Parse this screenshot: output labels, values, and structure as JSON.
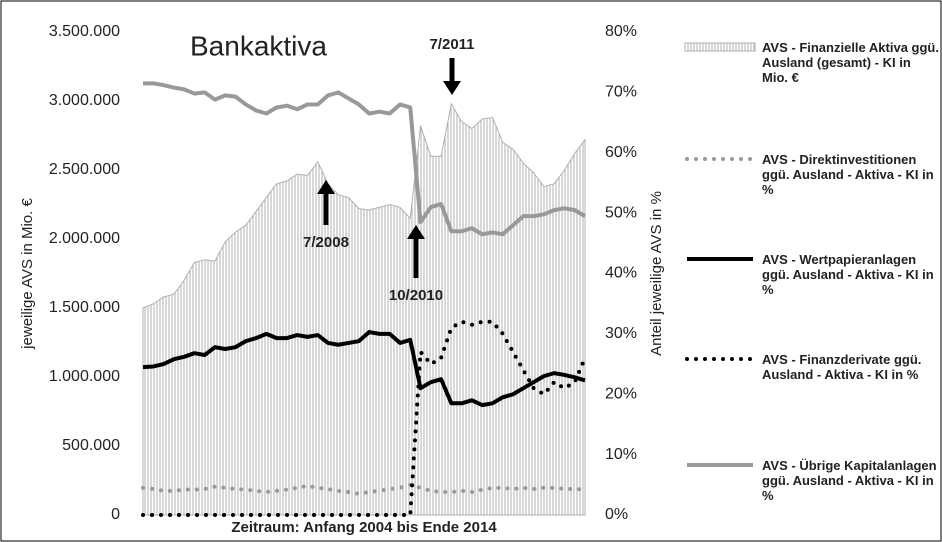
{
  "chart_data": {
    "type": "combo",
    "title": "Bankaktiva",
    "x_label": "Zeitraum: Anfang 2004 bis Ende 2014",
    "y_label": "jeweilige AVS in Mio. €",
    "y2_label": "Anteil jeweilige AVS in %",
    "ylim": [
      0,
      3500000
    ],
    "yticks": [
      0,
      {
        "value": 500000,
        "label": "500.000"
      },
      {
        "value": 1000000,
        "label": "1.000.000"
      },
      {
        "value": 1500000,
        "label": "1.500.000"
      },
      {
        "value": 2000000,
        "label": "2.000.000"
      },
      {
        "value": 2500000,
        "label": "2.500.000"
      },
      {
        "value": 3000000,
        "label": "3.000.000"
      },
      {
        "value": 3500000,
        "label": "3.500.000"
      }
    ],
    "y2lim": [
      0,
      80
    ],
    "y2ticks": [
      {
        "value": 0,
        "label": "0%"
      },
      {
        "value": 10,
        "label": "10%"
      },
      {
        "value": 20,
        "label": "20%"
      },
      {
        "value": 30,
        "label": "30%"
      },
      {
        "value": 40,
        "label": "40%"
      },
      {
        "value": 50,
        "label": "50%"
      },
      {
        "value": 60,
        "label": "60%"
      },
      {
        "value": 70,
        "label": "70%"
      },
      {
        "value": 80,
        "label": "80%"
      }
    ],
    "annotations": [
      "7/2011",
      "7/2008",
      "10/2010"
    ],
    "series": [
      {
        "name": "AVS - Finanzielle Aktiva ggü. Ausland (gesamt) - KI in Mio. €",
        "color": "#b0b0b0",
        "style": "area",
        "values": [
          1500000,
          1530000,
          1580000,
          1600000,
          1700000,
          1830000,
          1850000,
          1840000,
          1980000,
          2050000,
          2100000,
          2200000,
          2300000,
          2400000,
          2420000,
          2470000,
          2460000,
          2560000,
          2400000,
          2320000,
          2300000,
          2220000,
          2210000,
          2230000,
          2250000,
          2230000,
          2150000,
          2820000,
          2600000,
          2600000,
          2980000,
          2850000,
          2800000,
          2870000,
          2880000,
          2700000,
          2650000,
          2550000,
          2480000,
          2380000,
          2400000,
          2500000,
          2620000,
          2720000
        ]
      },
      {
        "name": "AVS - Direktinvestitionen ggü. Ausland - Aktiva - KI in %",
        "color": "#999999",
        "style": "dotted",
        "axis": "y2",
        "values": [
          4.5,
          4.3,
          4,
          4,
          4.2,
          4.2,
          4.3,
          4.7,
          4.5,
          4.3,
          4.2,
          4,
          3.8,
          4,
          4.2,
          4.5,
          4.8,
          4.5,
          4.3,
          4,
          3.8,
          3.5,
          3.8,
          4,
          4.3,
          4.5,
          5,
          4.5,
          4,
          3.8,
          3.8,
          4,
          3.8,
          4.2,
          4.5,
          4.5,
          4.3,
          4.5,
          4.3,
          4.5,
          4.5,
          4.3,
          4.3,
          4.2
        ]
      },
      {
        "name": "AVS - Wertpapieranlagen ggü. Ausland - Aktiva - KI in %",
        "color": "#000000",
        "style": "solid",
        "axis": "y2",
        "values": [
          24.5,
          24.6,
          25,
          25.8,
          26.2,
          26.8,
          26.5,
          27.8,
          27.5,
          27.8,
          28.8,
          29.3,
          30,
          29.3,
          29.3,
          29.8,
          29.5,
          29.8,
          28.5,
          28.2,
          28.5,
          28.8,
          30.3,
          30,
          30,
          28.5,
          29,
          21,
          22,
          22.5,
          18.5,
          18.5,
          19,
          18.2,
          18.5,
          19.5,
          20,
          21,
          22,
          23,
          23.5,
          23.2,
          22.8,
          22.3
        ]
      },
      {
        "name": "AVS - Finanzderivate ggü. Ausland - Aktiva - KI in %",
        "color": "#000000",
        "style": "dotted",
        "axis": "y2",
        "values": [
          0,
          0,
          0,
          0,
          0,
          0,
          0,
          0,
          0,
          0,
          0,
          0,
          0,
          0,
          0,
          0,
          0,
          0,
          0,
          0,
          0,
          0,
          0,
          0,
          0,
          0,
          0,
          27,
          25,
          26,
          31,
          32,
          31.5,
          32,
          32,
          30,
          27,
          24,
          21,
          20,
          22,
          21,
          22,
          26
        ]
      },
      {
        "name": "AVS - Übrige Kapitalanlagen ggü. Ausland - Aktiva - KI in %",
        "color": "#999999",
        "style": "solid",
        "axis": "y2",
        "values": [
          71.5,
          71.5,
          71.2,
          70.8,
          70.5,
          69.8,
          70,
          68.8,
          69.5,
          69.3,
          68,
          67,
          66.5,
          67.5,
          67.8,
          67.2,
          68,
          68,
          69.5,
          70,
          69,
          68,
          66.5,
          66.8,
          66.5,
          68,
          67.5,
          48.5,
          51,
          51.5,
          47,
          47,
          47.5,
          46.5,
          46.8,
          46.5,
          48,
          49.5,
          49.5,
          49.8,
          50.5,
          50.8,
          50.5,
          49.5
        ]
      }
    ]
  }
}
